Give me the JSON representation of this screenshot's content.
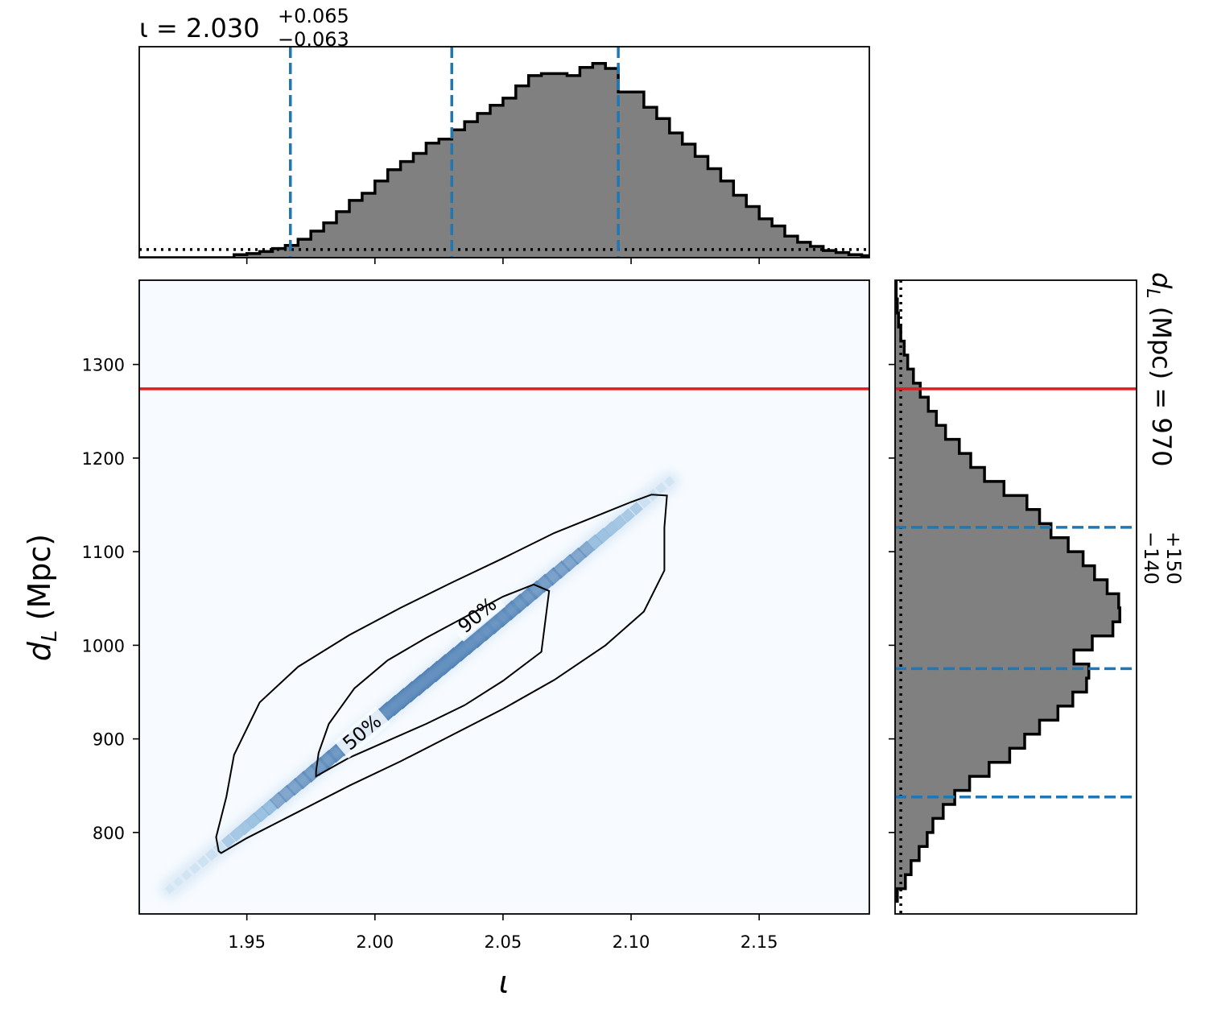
{
  "chart_data": [
    {
      "panel": "top-marginal",
      "type": "histogram",
      "title": {
        "symbol": "ι",
        "equals": " = ",
        "median": "2.030",
        "upper": "+0.065",
        "lower": "−0.063"
      },
      "xlim": [
        1.908,
        2.193
      ],
      "bin_width": 0.005,
      "bin_start": 1.905,
      "densities": [
        0,
        0,
        0,
        0,
        0,
        0,
        0,
        0,
        0.3,
        0.4,
        0.6,
        0.9,
        1.2,
        1.8,
        2.6,
        3.4,
        4.5,
        5.6,
        6.3,
        7.5,
        8.6,
        9.4,
        10.2,
        11.2,
        11.6,
        12.5,
        13.3,
        14.1,
        14.9,
        15.6,
        16.8,
        17.8,
        18.0,
        18.0,
        17.8,
        18.6,
        19.0,
        18.5,
        16.2,
        16.2,
        14.7,
        13.6,
        12.2,
        11.1,
        9.9,
        8.7,
        7.5,
        6.1,
        5.0,
        3.8,
        3.1,
        2.1,
        1.5,
        1.1,
        0.7,
        0.5,
        0.3,
        0.2,
        0.1,
        0,
        0,
        0
      ],
      "prior_level": 0.8,
      "quantile_lines": [
        1.967,
        2.03,
        2.095
      ],
      "quantile_color": "#1f77b4",
      "fill_color": "#808080"
    },
    {
      "panel": "joint",
      "type": "heatmap",
      "xlabel": "ι",
      "ylabel": {
        "symbol": "d",
        "sub": "L",
        "unit": " (Mpc)"
      },
      "xlim": [
        1.908,
        2.193
      ],
      "ylim": [
        713,
        1390
      ],
      "xticks": [
        "1.95",
        "2.00",
        "2.05",
        "2.10",
        "2.15"
      ],
      "xtick_values": [
        1.95,
        2.0,
        2.05,
        2.1,
        2.15
      ],
      "yticks": [
        "800",
        "900",
        "1000",
        "1100",
        "1200",
        "1300"
      ],
      "ytick_values": [
        800,
        900,
        1000,
        1100,
        1200,
        1300
      ],
      "injection_dL": 1274,
      "injection_color": "#e41a1c",
      "colormap": "Blues",
      "ridge": {
        "x0": 1.92,
        "y0": 740,
        "x1": 2.115,
        "y1": 1175
      },
      "contours": [
        {
          "label": "90%",
          "label_pos": [
            2.04,
            1032
          ],
          "label_angle_deg": -40,
          "points": [
            [
              1.94,
              778
            ],
            [
              1.95,
              794
            ],
            [
              1.97,
              822
            ],
            [
              1.99,
              850
            ],
            [
              2.01,
              876
            ],
            [
              2.03,
              904
            ],
            [
              2.05,
              932
            ],
            [
              2.07,
              963
            ],
            [
              2.09,
              1000
            ],
            [
              2.105,
              1036
            ],
            [
              2.113,
              1080
            ],
            [
              2.113,
              1126
            ],
            [
              2.114,
              1160
            ],
            [
              2.108,
              1161
            ],
            [
              2.1,
              1153
            ],
            [
              2.09,
              1142
            ],
            [
              2.07,
              1120
            ],
            [
              2.05,
              1093
            ],
            [
              2.03,
              1067
            ],
            [
              2.01,
              1040
            ],
            [
              1.99,
              1011
            ],
            [
              1.97,
              977
            ],
            [
              1.955,
              939
            ],
            [
              1.945,
              883
            ],
            [
              1.942,
              838
            ],
            [
              1.938,
              795
            ],
            [
              1.939,
              780
            ]
          ]
        },
        {
          "label": "50%",
          "label_pos": [
            1.995,
            907
          ],
          "label_angle_deg": -40,
          "points": [
            [
              1.977,
              860
            ],
            [
              1.99,
              880
            ],
            [
              2.005,
              898
            ],
            [
              2.02,
              916
            ],
            [
              2.035,
              936
            ],
            [
              2.05,
              962
            ],
            [
              2.065,
              993
            ],
            [
              2.068,
              1058
            ],
            [
              2.062,
              1065
            ],
            [
              2.05,
              1052
            ],
            [
              2.035,
              1030
            ],
            [
              2.02,
              1008
            ],
            [
              2.005,
              984
            ],
            [
              1.992,
              954
            ],
            [
              1.982,
              916
            ],
            [
              1.978,
              885
            ],
            [
              1.977,
              865
            ]
          ]
        }
      ]
    },
    {
      "panel": "right-marginal",
      "type": "histogram",
      "orientation": "horizontal",
      "title": {
        "symbol": "d",
        "sub": "L",
        "unit": " (Mpc) = ",
        "median": "970",
        "upper": "+150",
        "lower": "−140"
      },
      "ylim": [
        713,
        1390
      ],
      "bin_width": 15,
      "bin_start": 725,
      "densities": [
        0.2,
        0.9,
        1.4,
        2.1,
        2.8,
        3.3,
        4.2,
        5.2,
        6.5,
        8.2,
        10.0,
        11.3,
        12.6,
        14.2,
        15.5,
        16.7,
        16.9,
        15.6,
        17.2,
        19.0,
        19.6,
        19.5,
        18.5,
        17.4,
        16.4,
        15.1,
        13.6,
        12.6,
        11.5,
        9.5,
        7.8,
        6.6,
        5.6,
        4.4,
        3.6,
        2.9,
        2.2,
        1.6,
        1.1,
        0.8,
        0.5,
        0.3,
        0.2,
        0.1,
        0.1,
        0.05,
        0.03,
        0.02
      ],
      "prior_level": 0.5,
      "quantile_lines": [
        838,
        975,
        1126
      ],
      "injection_dL": 1274
    }
  ]
}
